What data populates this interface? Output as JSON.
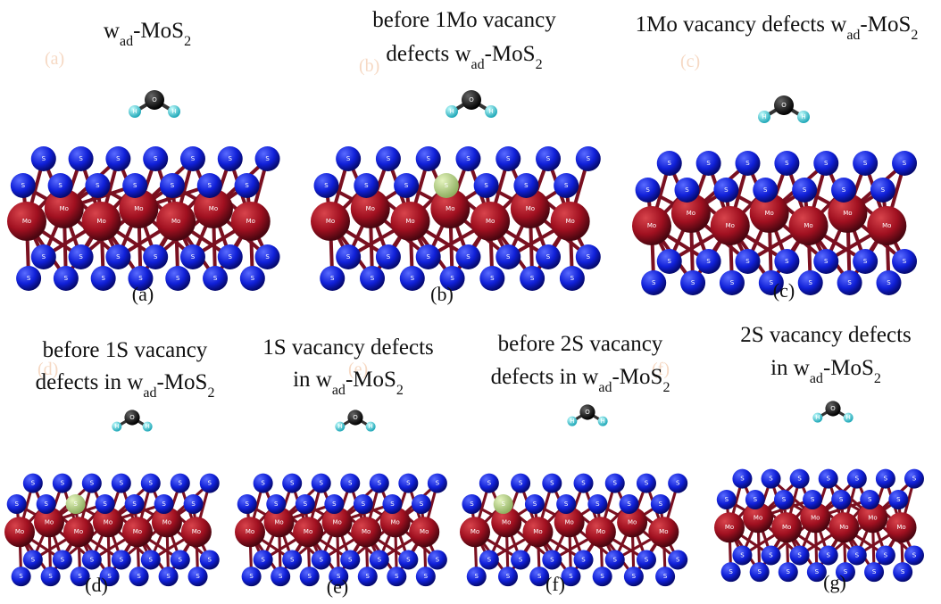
{
  "panels": [
    {
      "title": [
        [
          {
            "text": "w"
          },
          {
            "text": "ad",
            "sub": true
          },
          {
            "text": "-MoS"
          },
          {
            "text": "2",
            "sub": true
          }
        ]
      ],
      "label": "(a)",
      "watermark": "(a)"
    },
    {
      "title": [
        [
          {
            "text": "before 1Mo vacancy"
          }
        ],
        [
          {
            "text": "defects w"
          },
          {
            "text": "ad",
            "sub": true
          },
          {
            "text": "-MoS"
          },
          {
            "text": "2",
            "sub": true
          }
        ]
      ],
      "label": "(b)",
      "watermark": "(b)"
    },
    {
      "title": [
        [
          {
            "text": "1Mo vacancy defects w"
          },
          {
            "text": "ad",
            "sub": true
          },
          {
            "text": "-MoS"
          },
          {
            "text": "2",
            "sub": true
          }
        ]
      ],
      "label": "(c)",
      "watermark": "(c)"
    },
    {
      "title": [
        [
          {
            "text": "before 1S vacancy"
          }
        ],
        [
          {
            "text": "defects in w"
          },
          {
            "text": "ad",
            "sub": true
          },
          {
            "text": "-MoS"
          },
          {
            "text": "2",
            "sub": true
          }
        ]
      ],
      "label": "(d)",
      "watermark": "(d)"
    },
    {
      "title": [
        [
          {
            "text": "1S vacancy defects"
          }
        ],
        [
          {
            "text": "in w"
          },
          {
            "text": "ad",
            "sub": true
          },
          {
            "text": "-MoS"
          },
          {
            "text": "2",
            "sub": true
          }
        ]
      ],
      "label": "(e)",
      "watermark": "(e)"
    },
    {
      "title": [
        [
          {
            "text": "before 2S vacancy"
          }
        ],
        [
          {
            "text": "defects in w"
          },
          {
            "text": "ad",
            "sub": true
          },
          {
            "text": "-MoS"
          },
          {
            "text": "2",
            "sub": true
          }
        ]
      ],
      "label": "(f)",
      "watermark": "(f)"
    },
    {
      "title": [
        [
          {
            "text": "2S vacancy defects"
          }
        ],
        [
          {
            "text": "in w"
          },
          {
            "text": "ad",
            "sub": true
          },
          {
            "text": "-MoS"
          },
          {
            "text": "2",
            "sub": true
          }
        ]
      ],
      "label": "(g)",
      "watermark": "(g)"
    }
  ],
  "atom_labels": {
    "S": "S",
    "Mo": "Mo",
    "O": "O",
    "H": "H"
  }
}
